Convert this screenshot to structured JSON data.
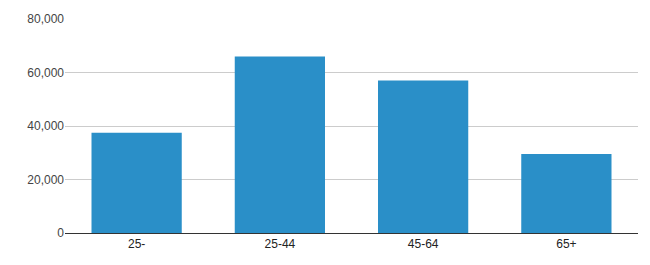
{
  "chart_data": {
    "type": "bar",
    "categories": [
      "25-",
      "25-44",
      "45-64",
      "65+"
    ],
    "values": [
      37500,
      66000,
      57000,
      29500
    ],
    "color": "#2a8fc8",
    "ylim": [
      0,
      80000
    ],
    "yticks": [
      0,
      {
        "value": 20000,
        "label": "20,000"
      },
      {
        "value": 40000,
        "label": "40,000"
      },
      {
        "value": 60000,
        "label": "60,000"
      },
      {
        "value": 80000,
        "label": "80,000"
      }
    ],
    "grid": true
  }
}
